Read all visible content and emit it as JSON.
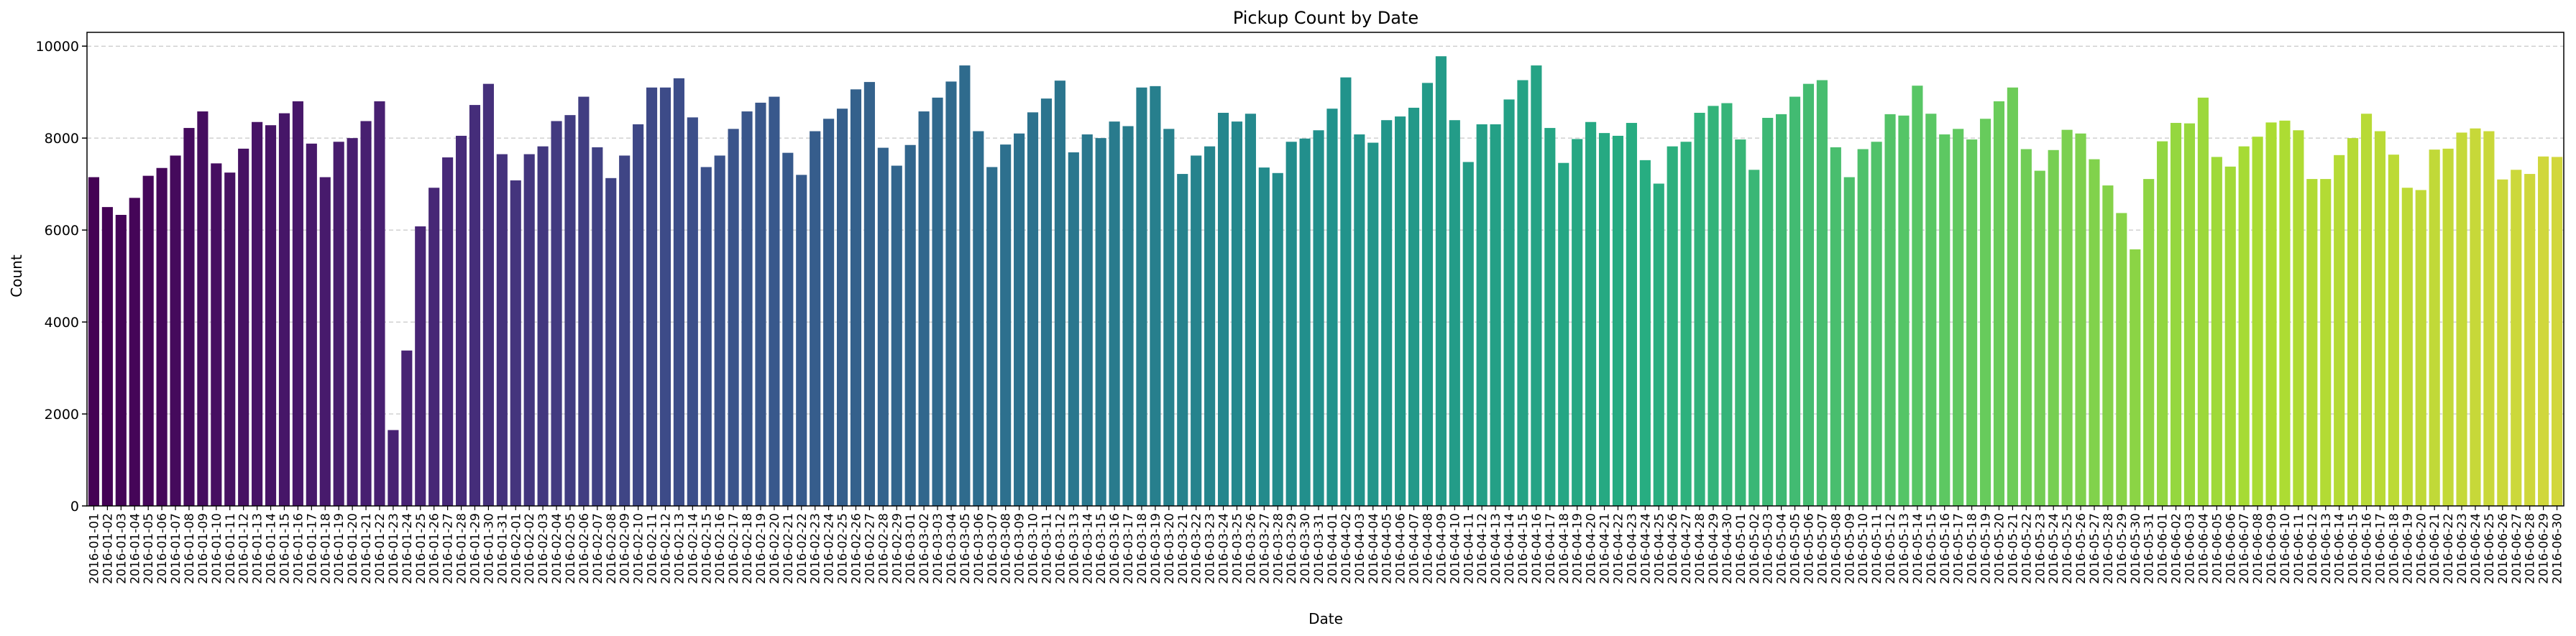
{
  "chart_data": {
    "type": "bar",
    "title": "Pickup Count by Date",
    "xlabel": "Date",
    "ylabel": "Count",
    "ylim": [
      0,
      10300
    ],
    "yticks": [
      0,
      2000,
      4000,
      6000,
      8000,
      10000
    ],
    "grid": "horizontal dashed",
    "colormap": "viridis",
    "colors": {
      "start": "#440154",
      "mid": "#21918c",
      "end": "#fde725",
      "grid": "#bbbbbb",
      "axis": "#000000"
    },
    "start_date": "2016-01-01",
    "categories": [
      "2016-01-01",
      "2016-01-02",
      "2016-01-03",
      "2016-01-04",
      "2016-01-05",
      "2016-01-06",
      "2016-01-07",
      "2016-01-08",
      "2016-01-09",
      "2016-01-10",
      "2016-01-11",
      "2016-01-12",
      "2016-01-13",
      "2016-01-14",
      "2016-01-15",
      "2016-01-16",
      "2016-01-17",
      "2016-01-18",
      "2016-01-19",
      "2016-01-20",
      "2016-01-21",
      "2016-01-22",
      "2016-01-23",
      "2016-01-24",
      "2016-01-25",
      "2016-01-26",
      "2016-01-27",
      "2016-01-28",
      "2016-01-29",
      "2016-01-30",
      "2016-01-31",
      "2016-02-01",
      "2016-02-02",
      "2016-02-03",
      "2016-02-04",
      "2016-02-05",
      "2016-02-06",
      "2016-02-07",
      "2016-02-08",
      "2016-02-09",
      "2016-02-10",
      "2016-02-11",
      "2016-02-12",
      "2016-02-13",
      "2016-02-14",
      "2016-02-15",
      "2016-02-16",
      "2016-02-17",
      "2016-02-18",
      "2016-02-19",
      "2016-02-20",
      "2016-02-21",
      "2016-02-22",
      "2016-02-23",
      "2016-02-24",
      "2016-02-25",
      "2016-02-26",
      "2016-02-27",
      "2016-02-28",
      "2016-02-29",
      "2016-03-01",
      "2016-03-02",
      "2016-03-03",
      "2016-03-04",
      "2016-03-05",
      "2016-03-06",
      "2016-03-07",
      "2016-03-08",
      "2016-03-09",
      "2016-03-10",
      "2016-03-11",
      "2016-03-12",
      "2016-03-13",
      "2016-03-14",
      "2016-03-15",
      "2016-03-16",
      "2016-03-17",
      "2016-03-18",
      "2016-03-19",
      "2016-03-20",
      "2016-03-21",
      "2016-03-22",
      "2016-03-23",
      "2016-03-24",
      "2016-03-25",
      "2016-03-26",
      "2016-03-27",
      "2016-03-28",
      "2016-03-29",
      "2016-03-30",
      "2016-03-31",
      "2016-04-01",
      "2016-04-02",
      "2016-04-03",
      "2016-04-04",
      "2016-04-05",
      "2016-04-06",
      "2016-04-07",
      "2016-04-08",
      "2016-04-09",
      "2016-04-10",
      "2016-04-11",
      "2016-04-12",
      "2016-04-13",
      "2016-04-14",
      "2016-04-15",
      "2016-04-16",
      "2016-04-17",
      "2016-04-18",
      "2016-04-19",
      "2016-04-20",
      "2016-04-21",
      "2016-04-22",
      "2016-04-23",
      "2016-04-24",
      "2016-04-25",
      "2016-04-26",
      "2016-04-27",
      "2016-04-28",
      "2016-04-29",
      "2016-04-30",
      "2016-05-01",
      "2016-05-02",
      "2016-05-03",
      "2016-05-04",
      "2016-05-05",
      "2016-05-06",
      "2016-05-07",
      "2016-05-08",
      "2016-05-09",
      "2016-05-10",
      "2016-05-11",
      "2016-05-12",
      "2016-05-13",
      "2016-05-14",
      "2016-05-15",
      "2016-05-16",
      "2016-05-17",
      "2016-05-18",
      "2016-05-19",
      "2016-05-20",
      "2016-05-21",
      "2016-05-22",
      "2016-05-23",
      "2016-05-24",
      "2016-05-25",
      "2016-05-26",
      "2016-05-27",
      "2016-05-28",
      "2016-05-29",
      "2016-05-30",
      "2016-05-31",
      "2016-06-01",
      "2016-06-02",
      "2016-06-03",
      "2016-06-04",
      "2016-06-05",
      "2016-06-06",
      "2016-06-07",
      "2016-06-08",
      "2016-06-09",
      "2016-06-10",
      "2016-06-11",
      "2016-06-12",
      "2016-06-13",
      "2016-06-14",
      "2016-06-15",
      "2016-06-16",
      "2016-06-17",
      "2016-06-18",
      "2016-06-19",
      "2016-06-20",
      "2016-06-21",
      "2016-06-22",
      "2016-06-23",
      "2016-06-24",
      "2016-06-25",
      "2016-06-26",
      "2016-06-27",
      "2016-06-28",
      "2016-06-29",
      "2016-06-30"
    ],
    "values": [
      7150,
      6500,
      6330,
      6700,
      7180,
      7350,
      7620,
      8220,
      8580,
      7450,
      7250,
      7770,
      8350,
      8280,
      8540,
      8800,
      7880,
      7150,
      7920,
      8000,
      8370,
      8800,
      1650,
      3380,
      6080,
      6920,
      7580,
      8050,
      8720,
      9180,
      7650,
      7080,
      7650,
      7820,
      8370,
      8500,
      8900,
      7800,
      7130,
      7620,
      8300,
      9100,
      9100,
      9300,
      8450,
      7370,
      7620,
      8200,
      8580,
      8770,
      8900,
      7680,
      7200,
      8150,
      8420,
      8640,
      9060,
      9220,
      7790,
      7400,
      7850,
      8580,
      8880,
      9230,
      9580,
      8150,
      7370,
      7860,
      8100,
      8560,
      8860,
      9250,
      7690,
      8080,
      8000,
      8360,
      8260,
      9100,
      9130,
      8200,
      7220,
      7620,
      7820,
      8550,
      8360,
      8530,
      7360,
      7240,
      7920,
      7990,
      8170,
      8640,
      9320,
      8080,
      7900,
      8390,
      8470,
      8660,
      9200,
      9780,
      8390,
      7480,
      8300,
      8300,
      8840,
      9260,
      9580,
      8220,
      7460,
      7980,
      8350,
      8110,
      8050,
      8330,
      7520,
      7010,
      7820,
      7920,
      8550,
      8700,
      8760,
      7970,
      7310,
      8440,
      8520,
      8900,
      9180,
      9260,
      7800,
      7150,
      7760,
      7920,
      8520,
      8490,
      9140,
      8530,
      8080,
      8200,
      7970,
      8420,
      8800,
      9100,
      7760,
      7290,
      7740,
      8180,
      8100,
      7540,
      6970,
      6370,
      5580,
      7110,
      7930,
      8330,
      8320,
      8880,
      7590,
      7380,
      7820,
      8030,
      8340,
      8380,
      8170,
      7110,
      7110,
      7630,
      8000,
      8530,
      8150,
      7640,
      6920,
      6870,
      7750,
      7770,
      8120,
      8210,
      8150,
      7100,
      7310,
      7220,
      7600,
      7590
    ]
  }
}
